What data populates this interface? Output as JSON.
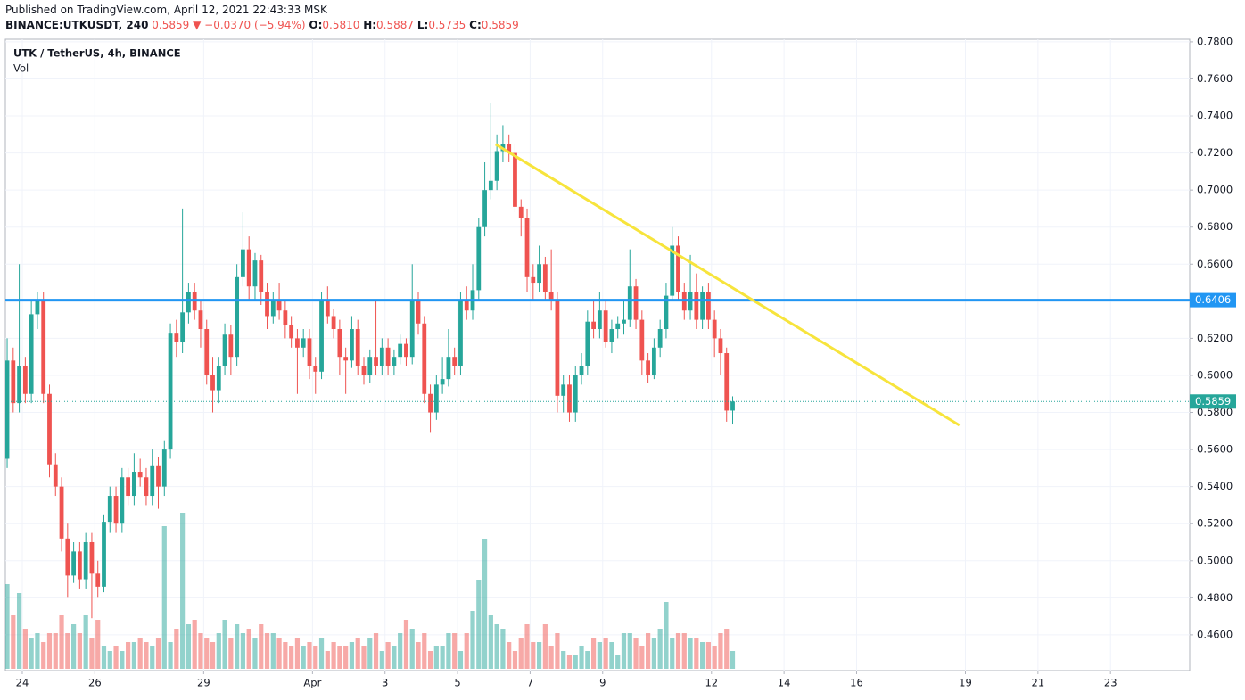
{
  "header": {
    "published": "Published on TradingView.com, April 12, 2021 22:43:33 MSK",
    "symbol": "BINANCE:UTKUSDT, 240",
    "last": "0.5859",
    "arrow": "▼",
    "change": "−0.0370 (−5.94%)",
    "o_label": "O:",
    "open": "0.5810",
    "h_label": "H:",
    "high": "0.5887",
    "l_label": "L:",
    "low": "0.5735",
    "c_label": "C:",
    "close": "0.5859"
  },
  "chart_data": {
    "type": "candlestick",
    "title": "UTK / TetherUS, 4h, BINANCE",
    "volume_label": "Vol",
    "up_color": "#26a69a",
    "down_color": "#ef5350",
    "grid": true,
    "candles": [
      [
        0.555,
        0.62,
        0.55,
        0.608
      ],
      [
        0.608,
        0.615,
        0.58,
        0.585
      ],
      [
        0.585,
        0.66,
        0.58,
        0.605
      ],
      [
        0.605,
        0.61,
        0.585,
        0.59
      ],
      [
        0.59,
        0.64,
        0.585,
        0.633
      ],
      [
        0.633,
        0.645,
        0.625,
        0.64
      ],
      [
        0.64,
        0.645,
        0.585,
        0.59
      ],
      [
        0.59,
        0.595,
        0.545,
        0.552
      ],
      [
        0.552,
        0.558,
        0.535,
        0.54
      ],
      [
        0.54,
        0.545,
        0.505,
        0.512
      ],
      [
        0.512,
        0.52,
        0.48,
        0.492
      ],
      [
        0.492,
        0.51,
        0.488,
        0.505
      ],
      [
        0.505,
        0.51,
        0.485,
        0.49
      ],
      [
        0.49,
        0.515,
        0.485,
        0.51
      ],
      [
        0.51,
        0.515,
        0.469,
        0.493
      ],
      [
        0.493,
        0.5,
        0.48,
        0.486
      ],
      [
        0.486,
        0.525,
        0.483,
        0.521
      ],
      [
        0.521,
        0.54,
        0.515,
        0.535
      ],
      [
        0.535,
        0.54,
        0.515,
        0.52
      ],
      [
        0.52,
        0.55,
        0.515,
        0.545
      ],
      [
        0.545,
        0.55,
        0.53,
        0.535
      ],
      [
        0.535,
        0.558,
        0.53,
        0.548
      ],
      [
        0.548,
        0.555,
        0.54,
        0.545
      ],
      [
        0.545,
        0.55,
        0.53,
        0.535
      ],
      [
        0.535,
        0.56,
        0.53,
        0.551
      ],
      [
        0.551,
        0.556,
        0.528,
        0.54
      ],
      [
        0.54,
        0.565,
        0.535,
        0.56
      ],
      [
        0.56,
        0.628,
        0.555,
        0.623
      ],
      [
        0.623,
        0.63,
        0.61,
        0.618
      ],
      [
        0.618,
        0.69,
        0.612,
        0.634
      ],
      [
        0.634,
        0.65,
        0.628,
        0.645
      ],
      [
        0.645,
        0.65,
        0.63,
        0.635
      ],
      [
        0.635,
        0.64,
        0.615,
        0.625
      ],
      [
        0.625,
        0.63,
        0.595,
        0.6
      ],
      [
        0.6,
        0.61,
        0.58,
        0.592
      ],
      [
        0.592,
        0.61,
        0.585,
        0.605
      ],
      [
        0.605,
        0.628,
        0.6,
        0.622
      ],
      [
        0.622,
        0.627,
        0.6,
        0.61
      ],
      [
        0.61,
        0.66,
        0.605,
        0.653
      ],
      [
        0.653,
        0.688,
        0.648,
        0.668
      ],
      [
        0.668,
        0.675,
        0.64,
        0.648
      ],
      [
        0.648,
        0.666,
        0.64,
        0.662
      ],
      [
        0.662,
        0.665,
        0.638,
        0.645
      ],
      [
        0.645,
        0.65,
        0.625,
        0.632
      ],
      [
        0.632,
        0.645,
        0.628,
        0.64
      ],
      [
        0.64,
        0.65,
        0.63,
        0.635
      ],
      [
        0.635,
        0.64,
        0.62,
        0.627
      ],
      [
        0.627,
        0.632,
        0.615,
        0.62
      ],
      [
        0.62,
        0.625,
        0.59,
        0.615
      ],
      [
        0.615,
        0.625,
        0.61,
        0.62
      ],
      [
        0.62,
        0.625,
        0.598,
        0.605
      ],
      [
        0.605,
        0.61,
        0.59,
        0.602
      ],
      [
        0.602,
        0.645,
        0.598,
        0.64
      ],
      [
        0.64,
        0.648,
        0.628,
        0.632
      ],
      [
        0.632,
        0.636,
        0.62,
        0.625
      ],
      [
        0.625,
        0.63,
        0.6,
        0.61
      ],
      [
        0.61,
        0.615,
        0.59,
        0.608
      ],
      [
        0.608,
        0.632,
        0.604,
        0.625
      ],
      [
        0.625,
        0.63,
        0.6,
        0.605
      ],
      [
        0.605,
        0.61,
        0.595,
        0.6
      ],
      [
        0.6,
        0.614,
        0.596,
        0.61
      ],
      [
        0.61,
        0.64,
        0.6,
        0.605
      ],
      [
        0.605,
        0.62,
        0.6,
        0.615
      ],
      [
        0.615,
        0.62,
        0.6,
        0.605
      ],
      [
        0.605,
        0.614,
        0.6,
        0.61
      ],
      [
        0.61,
        0.622,
        0.606,
        0.617
      ],
      [
        0.617,
        0.62,
        0.605,
        0.61
      ],
      [
        0.61,
        0.66,
        0.606,
        0.64
      ],
      [
        0.64,
        0.645,
        0.622,
        0.628
      ],
      [
        0.628,
        0.632,
        0.585,
        0.59
      ],
      [
        0.59,
        0.595,
        0.569,
        0.58
      ],
      [
        0.58,
        0.6,
        0.576,
        0.595
      ],
      [
        0.595,
        0.61,
        0.59,
        0.598
      ],
      [
        0.598,
        0.625,
        0.594,
        0.61
      ],
      [
        0.61,
        0.615,
        0.6,
        0.605
      ],
      [
        0.605,
        0.645,
        0.6,
        0.64
      ],
      [
        0.64,
        0.648,
        0.63,
        0.635
      ],
      [
        0.635,
        0.66,
        0.63,
        0.646
      ],
      [
        0.646,
        0.685,
        0.64,
        0.68
      ],
      [
        0.68,
        0.715,
        0.675,
        0.7
      ],
      [
        0.7,
        0.747,
        0.695,
        0.705
      ],
      [
        0.705,
        0.73,
        0.7,
        0.721
      ],
      [
        0.721,
        0.735,
        0.715,
        0.725
      ],
      [
        0.725,
        0.73,
        0.715,
        0.72
      ],
      [
        0.72,
        0.725,
        0.688,
        0.691
      ],
      [
        0.691,
        0.695,
        0.675,
        0.685
      ],
      [
        0.685,
        0.69,
        0.645,
        0.653
      ],
      [
        0.653,
        0.66,
        0.64,
        0.65
      ],
      [
        0.65,
        0.67,
        0.645,
        0.66
      ],
      [
        0.66,
        0.664,
        0.64,
        0.645
      ],
      [
        0.645,
        0.668,
        0.635,
        0.64
      ],
      [
        0.64,
        0.645,
        0.58,
        0.589
      ],
      [
        0.589,
        0.6,
        0.58,
        0.595
      ],
      [
        0.595,
        0.6,
        0.575,
        0.58
      ],
      [
        0.58,
        0.605,
        0.575,
        0.6
      ],
      [
        0.6,
        0.612,
        0.595,
        0.605
      ],
      [
        0.605,
        0.635,
        0.6,
        0.629
      ],
      [
        0.629,
        0.64,
        0.62,
        0.625
      ],
      [
        0.625,
        0.645,
        0.62,
        0.635
      ],
      [
        0.635,
        0.64,
        0.615,
        0.618
      ],
      [
        0.618,
        0.63,
        0.612,
        0.625
      ],
      [
        0.625,
        0.632,
        0.62,
        0.628
      ],
      [
        0.628,
        0.64,
        0.622,
        0.63
      ],
      [
        0.63,
        0.668,
        0.626,
        0.648
      ],
      [
        0.648,
        0.652,
        0.625,
        0.63
      ],
      [
        0.63,
        0.635,
        0.6,
        0.608
      ],
      [
        0.608,
        0.612,
        0.596,
        0.6
      ],
      [
        0.6,
        0.62,
        0.598,
        0.615
      ],
      [
        0.615,
        0.63,
        0.61,
        0.625
      ],
      [
        0.625,
        0.65,
        0.62,
        0.643
      ],
      [
        0.643,
        0.68,
        0.64,
        0.67
      ],
      [
        0.67,
        0.675,
        0.64,
        0.645
      ],
      [
        0.645,
        0.65,
        0.63,
        0.635
      ],
      [
        0.635,
        0.665,
        0.63,
        0.645
      ],
      [
        0.645,
        0.655,
        0.625,
        0.63
      ],
      [
        0.63,
        0.648,
        0.625,
        0.645
      ],
      [
        0.645,
        0.65,
        0.625,
        0.63
      ],
      [
        0.63,
        0.635,
        0.61,
        0.62
      ],
      [
        0.62,
        0.625,
        0.6,
        0.612
      ],
      [
        0.612,
        0.615,
        0.575,
        0.581
      ],
      [
        0.581,
        0.5887,
        0.5735,
        0.5859
      ]
    ],
    "volumes": [
      95,
      60,
      85,
      45,
      35,
      40,
      30,
      40,
      40,
      60,
      40,
      50,
      40,
      60,
      35,
      55,
      25,
      20,
      25,
      20,
      30,
      30,
      35,
      30,
      25,
      35,
      160,
      30,
      45,
      175,
      50,
      55,
      40,
      35,
      30,
      40,
      55,
      35,
      50,
      40,
      45,
      35,
      50,
      40,
      40,
      35,
      30,
      25,
      35,
      25,
      30,
      25,
      35,
      20,
      30,
      25,
      25,
      30,
      35,
      25,
      35,
      40,
      20,
      30,
      25,
      40,
      55,
      45,
      30,
      40,
      20,
      25,
      25,
      40,
      40,
      20,
      40,
      65,
      100,
      145,
      60,
      50,
      45,
      30,
      20,
      35,
      50,
      30,
      30,
      50,
      25,
      40,
      20,
      15,
      15,
      25,
      20,
      35,
      30,
      35,
      30,
      15,
      40,
      40,
      35,
      25,
      40,
      35,
      45,
      75,
      35,
      40,
      40,
      35,
      35,
      30,
      30,
      25,
      40,
      45,
      20
    ],
    "xlim": [
      -0.3,
      195.6
    ],
    "xticks": [
      {
        "value": 2.5,
        "label": "24"
      },
      {
        "value": 14.5,
        "label": "26"
      },
      {
        "value": 32.5,
        "label": "29"
      },
      {
        "value": 50.5,
        "label": "Apr"
      },
      {
        "value": 62.5,
        "label": "3"
      },
      {
        "value": 74.5,
        "label": "5"
      },
      {
        "value": 86.5,
        "label": "7"
      },
      {
        "value": 98.5,
        "label": "9"
      },
      {
        "value": 116.5,
        "label": "12"
      },
      {
        "value": 128.5,
        "label": "14"
      },
      {
        "value": 140.5,
        "label": "16"
      },
      {
        "value": 158.5,
        "label": "19"
      },
      {
        "value": 170.5,
        "label": "21"
      },
      {
        "value": 182.5,
        "label": "23"
      }
    ],
    "ylim": [
      0.4407,
      0.7814
    ],
    "yticks": [
      {
        "value": 0.46,
        "label": "0.4600"
      },
      {
        "value": 0.48,
        "label": "0.4800"
      },
      {
        "value": 0.5,
        "label": "0.5000"
      },
      {
        "value": 0.52,
        "label": "0.5200"
      },
      {
        "value": 0.54,
        "label": "0.5400"
      },
      {
        "value": 0.56,
        "label": "0.5600"
      },
      {
        "value": 0.58,
        "label": "0.5800"
      },
      {
        "value": 0.6,
        "label": "0.6000"
      },
      {
        "value": 0.62,
        "label": "0.6200"
      },
      {
        "value": 0.64,
        "label": "0.6400"
      },
      {
        "value": 0.66,
        "label": "0.6600"
      },
      {
        "value": 0.68,
        "label": "0.6800"
      },
      {
        "value": 0.7,
        "label": "0.7000"
      },
      {
        "value": 0.72,
        "label": "0.7200"
      },
      {
        "value": 0.74,
        "label": "0.7400"
      },
      {
        "value": 0.76,
        "label": "0.7600"
      },
      {
        "value": 0.78,
        "label": "0.7800"
      }
    ],
    "hline": 0.6406,
    "hline_color": "#2196f3",
    "trendline": [
      [
        80.8,
        0.7247
      ],
      [
        157.5,
        0.5731
      ]
    ],
    "trendline_color": "#f7e43c"
  }
}
